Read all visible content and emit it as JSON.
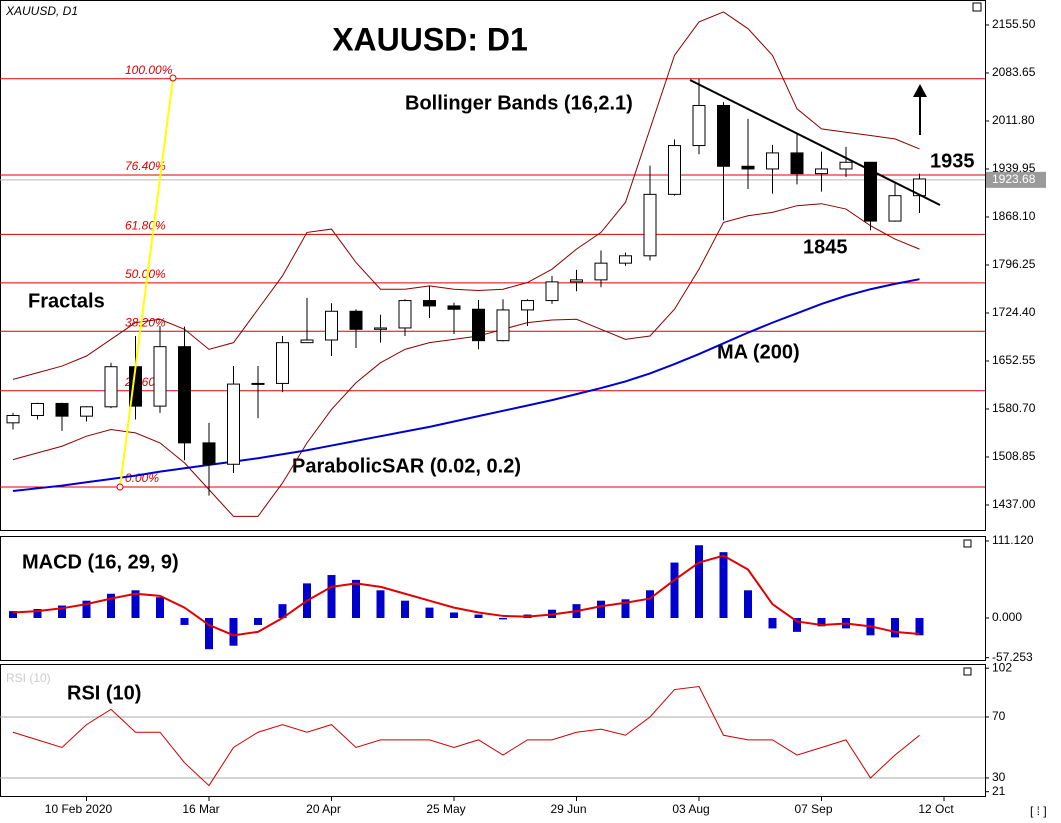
{
  "chart_data": [
    {
      "type": "candlestick",
      "title": "XAUUSD: D1",
      "symbol_label": "XAUUSD, D1",
      "categories": [
        null,
        null,
        null,
        "10 Feb 2020",
        null,
        null,
        null,
        null,
        "16 Mar",
        null,
        null,
        null,
        null,
        "20 Apr",
        null,
        null,
        null,
        null,
        "25 May",
        null,
        null,
        null,
        null,
        "29 Jun",
        null,
        null,
        null,
        null,
        "03 Aug",
        null,
        null,
        null,
        null,
        "07 Sep",
        null,
        null,
        null,
        null,
        "12 Oct"
      ],
      "open": [
        1560,
        1571,
        1589,
        1570,
        1584,
        1644,
        1585,
        1674,
        1530,
        1498,
        1618,
        1619,
        1680,
        1684,
        1727,
        1700,
        1702,
        1743,
        1735,
        1730,
        1683,
        1729,
        1743,
        1771,
        1774,
        1799,
        1810,
        1902,
        1975,
        2035,
        1944,
        1940,
        1964,
        1933,
        1940,
        1950,
        1862,
        1900,
        null
      ],
      "high": [
        1575,
        1590,
        1590,
        1585,
        1650,
        1690,
        1705,
        1704,
        1560,
        1645,
        1645,
        1690,
        1747,
        1739,
        1730,
        1722,
        1745,
        1765,
        1740,
        1744,
        1745,
        1745,
        1780,
        1789,
        1818,
        1815,
        1945,
        1984,
        2075,
        2040,
        2015,
        1976,
        1992,
        1966,
        1973,
        1950,
        1918,
        1933,
        null
      ],
      "low": [
        1550,
        1565,
        1548,
        1562,
        1582,
        1565,
        1575,
        1504,
        1451,
        1485,
        1567,
        1606,
        1680,
        1660,
        1672,
        1680,
        1690,
        1717,
        1693,
        1670,
        1682,
        1705,
        1738,
        1757,
        1763,
        1795,
        1803,
        1900,
        1962,
        1863,
        1910,
        1903,
        1917,
        1906,
        1928,
        1848,
        1861,
        1874,
        null
      ],
      "close": [
        1571,
        1589,
        1570,
        1584,
        1644,
        1585,
        1674,
        1530,
        1498,
        1618,
        1619,
        1680,
        1684,
        1727,
        1700,
        1702,
        1743,
        1735,
        1730,
        1683,
        1729,
        1743,
        1771,
        1774,
        1799,
        1810,
        1902,
        1975,
        2035,
        1944,
        1940,
        1964,
        1933,
        1940,
        1950,
        1862,
        1900,
        1925,
        null
      ],
      "up_color": "#ffffff",
      "down_color": "#000000",
      "ylim": [
        1399.6,
        2185.4
      ],
      "yticks": [
        {
          "value": 2155.5,
          "label": "2155.50"
        },
        {
          "value": 2083.65,
          "label": "2083.65"
        },
        {
          "value": 2011.8,
          "label": "2011.80"
        },
        {
          "value": 1939.95,
          "label": "1939.95"
        },
        {
          "value": 1868.1,
          "label": "1868.10"
        },
        {
          "value": 1796.25,
          "label": "1796.25"
        },
        {
          "value": 1724.4,
          "label": "1724.40"
        },
        {
          "value": 1652.55,
          "label": "1652.55"
        },
        {
          "value": 1580.7,
          "label": "1580.70"
        },
        {
          "value": 1508.85,
          "label": "1508.85"
        },
        {
          "value": 1437,
          "label": "1437.00"
        }
      ],
      "current_price": 1923.68,
      "ma": {
        "name": "MA (200)",
        "color": "#0000cc",
        "values": [
          1458,
          1462,
          1466,
          1471,
          1476,
          1481,
          1487,
          1492,
          1497,
          1502,
          1507,
          1513,
          1519,
          1526,
          1533,
          1540,
          1547,
          1554,
          1562,
          1570,
          1578,
          1586,
          1594,
          1603,
          1612,
          1622,
          1634,
          1648,
          1663,
          1679,
          1695,
          1710,
          1724,
          1738,
          1750,
          1760,
          1768,
          1775,
          null
        ]
      },
      "bollinger": {
        "name": "Bollinger Bands (16,2.1)",
        "color": "#8b0000",
        "upper": [
          1625,
          1635,
          1645,
          1660,
          1685,
          1710,
          1715,
          1700,
          1670,
          1680,
          1730,
          1780,
          1845,
          1850,
          1800,
          1760,
          1760,
          1765,
          1760,
          1758,
          1760,
          1770,
          1790,
          1820,
          1845,
          1890,
          2000,
          2110,
          2160,
          2175,
          2150,
          2110,
          2030,
          2000,
          1995,
          1990,
          1985,
          1970,
          null
        ],
        "lower": [
          1505,
          1515,
          1525,
          1540,
          1550,
          1545,
          1530,
          1500,
          1460,
          1420,
          1420,
          1470,
          1530,
          1580,
          1620,
          1650,
          1670,
          1680,
          1685,
          1690,
          1700,
          1710,
          1714,
          1715,
          1700,
          1685,
          1690,
          1730,
          1790,
          1860,
          1870,
          1875,
          1885,
          1888,
          1880,
          1855,
          1835,
          1820,
          null
        ]
      },
      "fib_levels": [
        {
          "value": 2075,
          "label": "100.00%"
        },
        {
          "value": 1931,
          "label": "76.40%"
        },
        {
          "value": 1842,
          "label": "61.80%"
        },
        {
          "value": 1769.5,
          "label": "50.00%"
        },
        {
          "value": 1697,
          "label": "38.20%"
        },
        {
          "value": 1608,
          "label": "23.60%"
        },
        {
          "value": 1464,
          "label": "0.00%"
        }
      ],
      "fib_color": "#dd0000",
      "annotations": [
        "Fractals",
        "ParabolicSAR (0.02, 0.2)"
      ],
      "level_labels": [
        1935,
        1845
      ]
    },
    {
      "type": "macd",
      "title": "MACD (16, 29, 9)",
      "histogram": {
        "color": "#0000cc",
        "values": [
          10,
          13,
          18,
          25,
          35,
          40,
          30,
          -10,
          -45,
          -40,
          -10,
          20,
          50,
          62,
          55,
          40,
          25,
          15,
          8,
          5,
          -2,
          5,
          12,
          20,
          25,
          27,
          40,
          80,
          105,
          95,
          40,
          -15,
          -20,
          -12,
          -15,
          -25,
          -28,
          -25,
          null
        ]
      },
      "signal": {
        "color": "#e00000",
        "values": [
          8,
          10,
          14,
          20,
          28,
          35,
          32,
          15,
          -10,
          -25,
          -20,
          0,
          25,
          45,
          50,
          45,
          35,
          25,
          15,
          8,
          3,
          2,
          5,
          10,
          17,
          22,
          28,
          55,
          80,
          90,
          70,
          20,
          -5,
          -10,
          -8,
          -12,
          -20,
          -23,
          null
        ]
      },
      "ylim": [
        -60.6,
        116.9
      ],
      "yticks": [
        {
          "value": 111.12,
          "label": "111.120"
        },
        {
          "value": 0,
          "label": "0.000"
        },
        {
          "value": -57.253,
          "label": "-57.253"
        }
      ]
    },
    {
      "type": "line",
      "title": "RSI (10)",
      "series": [
        {
          "color": "#cc0000",
          "values": [
            60,
            55,
            50,
            65,
            75,
            60,
            60,
            40,
            25,
            50,
            60,
            65,
            60,
            65,
            50,
            55,
            55,
            55,
            50,
            55,
            45,
            55,
            55,
            60,
            62,
            58,
            70,
            88,
            90,
            58,
            55,
            55,
            45,
            50,
            55,
            30,
            45,
            58,
            null
          ]
        }
      ],
      "levels": [
        70,
        30
      ],
      "ylim": [
        17.5,
        104.1
      ],
      "yticks": [
        102,
        70,
        30,
        21
      ]
    }
  ]
}
